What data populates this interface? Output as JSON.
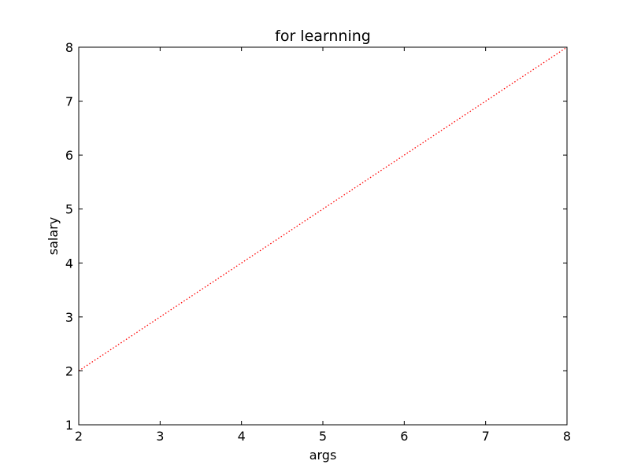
{
  "chart_data": {
    "type": "line",
    "title": "for learnning",
    "xlabel": "args",
    "ylabel": "salary",
    "xlim": [
      2,
      8
    ],
    "ylim": [
      1,
      8
    ],
    "xticks": [
      2,
      3,
      4,
      5,
      6,
      7,
      8
    ],
    "yticks": [
      1,
      2,
      3,
      4,
      5,
      6,
      7,
      8
    ],
    "grid": false,
    "series": [
      {
        "x": [
          2,
          3,
          4,
          5,
          6,
          7,
          8
        ],
        "y": [
          2,
          3,
          4,
          5,
          6,
          7,
          8
        ],
        "color": "#ff0000",
        "linestyle": "dotted"
      }
    ]
  }
}
